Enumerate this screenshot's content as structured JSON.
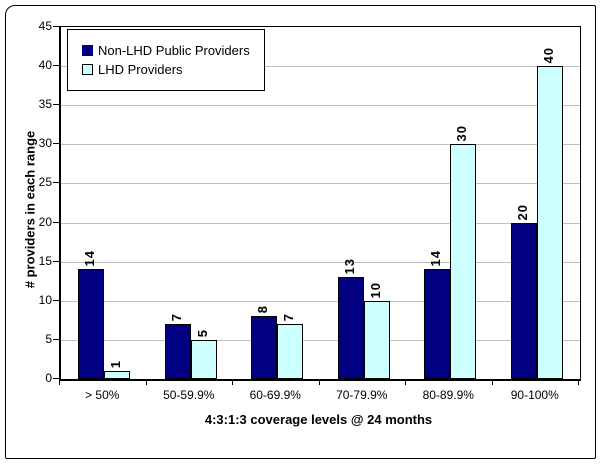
{
  "chart_data": {
    "type": "bar",
    "categories": [
      "> 50%",
      "50-59.9%",
      "60-69.9%",
      "70-79.9%",
      "80-89.9%",
      "90-100%"
    ],
    "series": [
      {
        "name": "Non-LHD Public Providers",
        "color": "#000080",
        "values": [
          14,
          7,
          8,
          13,
          14,
          20
        ]
      },
      {
        "name": "LHD Providers",
        "color": "#CCFFFF",
        "values": [
          1,
          5,
          7,
          10,
          30,
          40
        ]
      }
    ],
    "title": "",
    "xlabel": "4:3:1:3 coverage levels @ 24 months",
    "ylabel": "# providers in each range",
    "ylim": [
      0,
      45
    ],
    "ytick_step": 5,
    "grid": true,
    "gridline_color": "#C0C0C0",
    "plot_border_color": "#000000",
    "background_color": "#FFFFFF",
    "legend_position": "top-left",
    "data_labels": "rotated-90"
  }
}
